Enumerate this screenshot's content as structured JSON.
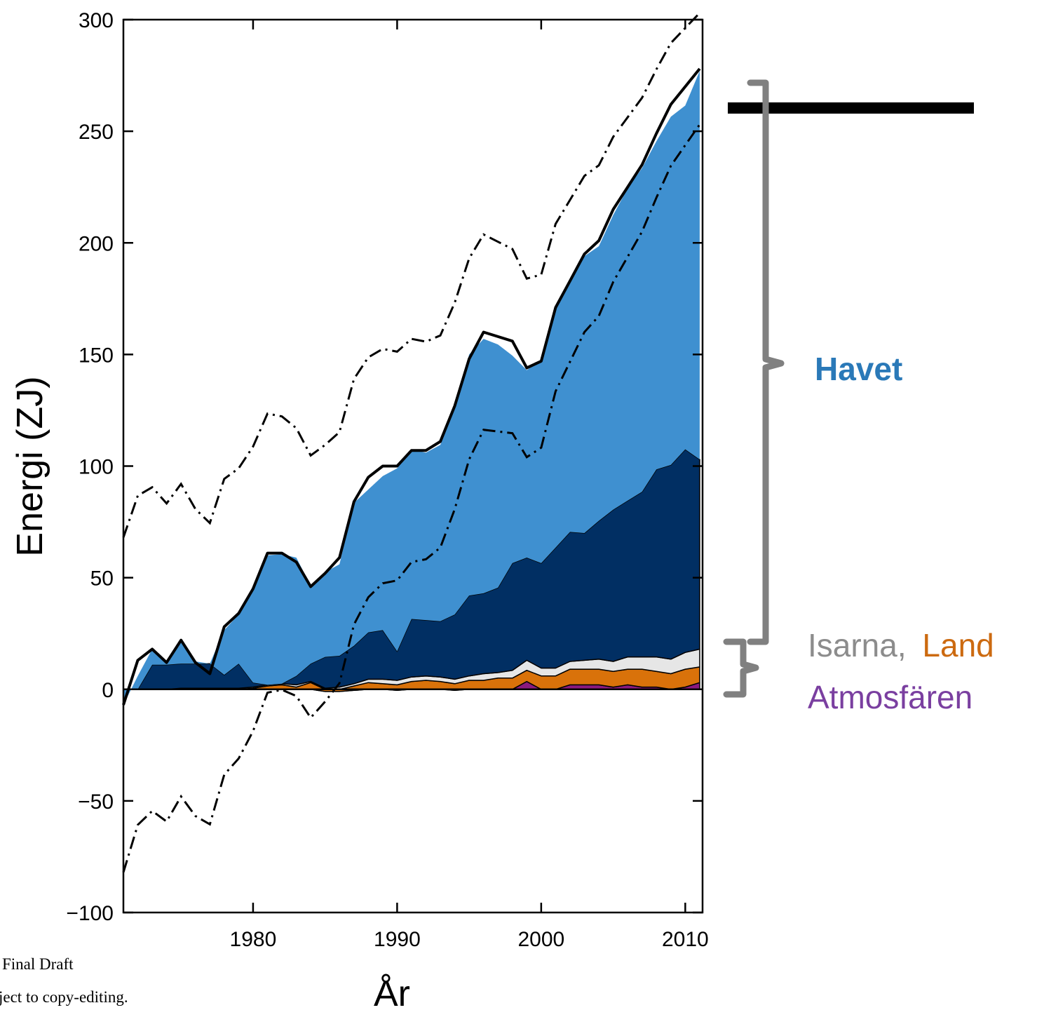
{
  "chart_data": {
    "type": "area",
    "xlabel": "År",
    "ylabel": "Energi (ZJ)",
    "xlim": [
      1971,
      2011.2
    ],
    "ylim": [
      -100,
      300
    ],
    "x_ticks": [
      1980,
      1990,
      2000,
      2010
    ],
    "y_ticks": [
      -100,
      -50,
      0,
      50,
      100,
      150,
      200,
      250,
      300
    ],
    "x_tick_labels": [
      "1980",
      "1990",
      "2000",
      "2010"
    ],
    "y_tick_labels": [
      "−100",
      "−50",
      "0",
      "50",
      "100",
      "150",
      "200",
      "250",
      "300"
    ],
    "years": [
      1971,
      1972,
      1973,
      1974,
      1975,
      1976,
      1977,
      1978,
      1979,
      1980,
      1981,
      1982,
      1983,
      1984,
      1985,
      1986,
      1987,
      1988,
      1989,
      1990,
      1991,
      1992,
      1993,
      1994,
      1995,
      1996,
      1997,
      1998,
      1999,
      2000,
      2001,
      2002,
      2003,
      2004,
      2005,
      2006,
      2007,
      2008,
      2009,
      2010,
      2011
    ],
    "series": [
      {
        "values": [
          0,
          0,
          0,
          0,
          0,
          0,
          0,
          0,
          0,
          0,
          0,
          0,
          0,
          0,
          -1,
          -1,
          -0.5,
          0,
          0,
          -0.5,
          0,
          0,
          0,
          -0.5,
          0,
          0,
          0,
          0,
          3.5,
          0,
          0,
          2,
          2,
          2,
          1,
          2,
          1,
          1,
          0,
          1,
          3
        ]
      },
      {
        "values": [
          0,
          0,
          0,
          0,
          0,
          0,
          0,
          0,
          0,
          0.5,
          1.5,
          2,
          1,
          3,
          1,
          1,
          2,
          3,
          2.5,
          2.5,
          3.5,
          4,
          3.5,
          3,
          4,
          4,
          5,
          5,
          5,
          6,
          6,
          7,
          7,
          7,
          7,
          7,
          8,
          7,
          7,
          8,
          7
        ]
      },
      {
        "values": [
          0,
          0,
          0,
          0,
          0.5,
          0.5,
          0.5,
          0.5,
          0.5,
          0.5,
          0.5,
          0.5,
          1,
          0.5,
          0.5,
          1,
          1,
          1.5,
          2,
          2,
          2,
          2,
          2,
          2,
          2,
          3,
          2.5,
          3.5,
          4.5,
          3.5,
          3.5,
          3.5,
          4,
          4.5,
          4.5,
          5.5,
          5.5,
          6.5,
          6.5,
          7.5,
          8
        ]
      },
      {
        "values": [
          0,
          0,
          11,
          11,
          11,
          11,
          11,
          6,
          11,
          2,
          0,
          0,
          4,
          8,
          14,
          14,
          17,
          21,
          22,
          13,
          26,
          25,
          25,
          29,
          36,
          36,
          38,
          48,
          46,
          47,
          54,
          58,
          57,
          62,
          68,
          70,
          74,
          84,
          87,
          91,
          85
        ]
      },
      {
        "values": [
          -7,
          6,
          7,
          1,
          11,
          1,
          0,
          20,
          22,
          42,
          58,
          58,
          53,
          35,
          38,
          41,
          64,
          64,
          69,
          82,
          76,
          75,
          79,
          93,
          108,
          114,
          109,
          93,
          84,
          91,
          107,
          112,
          124,
          123,
          132,
          140,
          145,
          147,
          156,
          154,
          174
        ]
      }
    ],
    "totals": [
      -7,
      13,
      18,
      12,
      22,
      12,
      7,
      28,
      34,
      45,
      61,
      61,
      57,
      46,
      52,
      59,
      84,
      95,
      100,
      100,
      107,
      107,
      111,
      127,
      148,
      160,
      158,
      156,
      144,
      147,
      171,
      183,
      195,
      201,
      215,
      225,
      235,
      249,
      262,
      270,
      278
    ]
  },
  "legend": {
    "havet": "Havet",
    "isarna": "Isarna,",
    "land": "Land",
    "atmos": "Atmosfären"
  },
  "footer": {
    "line1": "Final Draft",
    "line2": "ject to copy-editing."
  },
  "colors": {
    "atmos": "#8b1a7e",
    "land": "#d9720a",
    "ice": "#e6e6e6",
    "deep_ocean": "#012f63",
    "upper_ocean": "#3f90d0",
    "havet_text": "#2a79b8",
    "isarna_text": "#8c8c8c",
    "land_text": "#cc6a10",
    "atmos_text": "#7a3fa0",
    "brace": "#808080"
  }
}
